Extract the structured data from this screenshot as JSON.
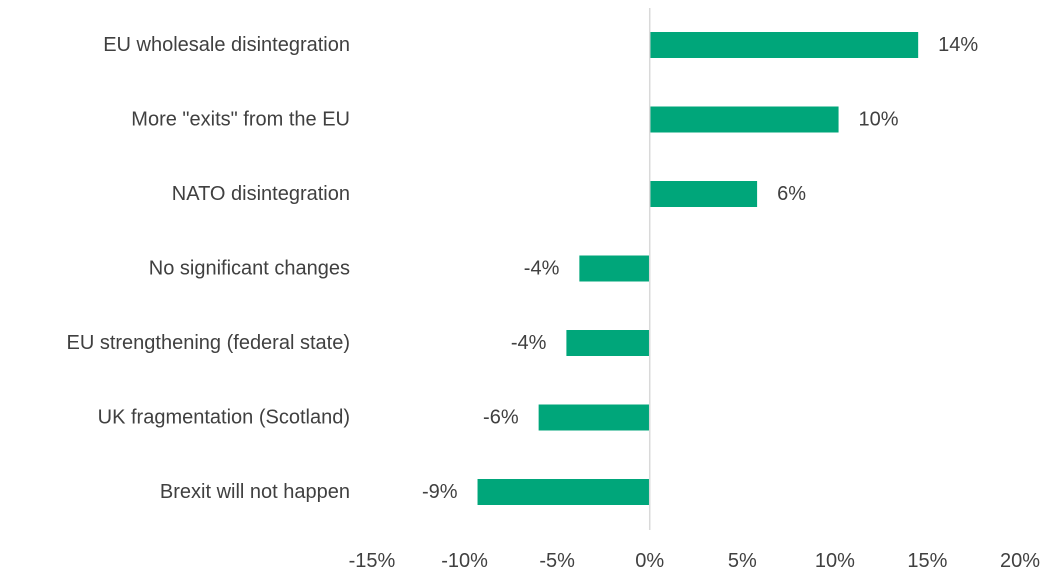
{
  "chart_data": {
    "type": "bar",
    "orientation": "horizontal",
    "title": "",
    "xlabel": "",
    "ylabel": "",
    "categories": [
      "EU wholesale disintegration",
      "More \"exits\" from the EU",
      "NATO disintegration",
      "No significant changes",
      "EU strengthening (federal state)",
      "UK fragmentation (Scotland)",
      "Brexit will not happen"
    ],
    "values": [
      14.5,
      10.2,
      5.8,
      -3.8,
      -4.5,
      -6.0,
      -9.3
    ],
    "data_labels": [
      "14%",
      "10%",
      "6%",
      "-4%",
      "-4%",
      "-6%",
      "-9%"
    ],
    "xlim": [
      -15,
      20
    ],
    "xticks": [
      -15,
      -10,
      -5,
      0,
      5,
      10,
      15,
      20
    ],
    "xtick_labels": [
      "-15%",
      "-10%",
      "-5%",
      "0%",
      "5%",
      "10%",
      "15%",
      "20%"
    ],
    "bar_color": "#00A67A",
    "axis_color": "#D9D9D9",
    "grid": false,
    "legend": "none"
  }
}
